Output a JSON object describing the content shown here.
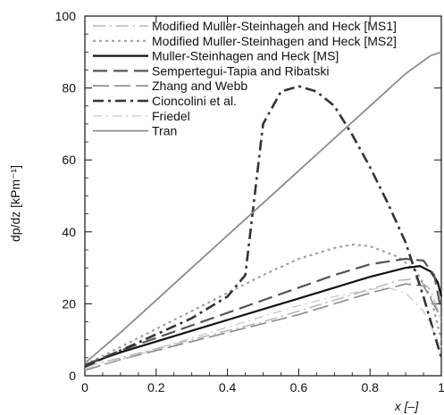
{
  "chart_data": {
    "type": "line",
    "title": "",
    "xlabel": "x [–]",
    "ylabel": "dp/dz [kPm⁻¹]",
    "xlim": [
      0,
      1
    ],
    "ylim": [
      0,
      100
    ],
    "x_ticks": [
      "0",
      "0.2",
      "0.4",
      "0.6",
      "0.8",
      "1"
    ],
    "y_ticks": [
      "0",
      "20",
      "40",
      "60",
      "80",
      "100"
    ],
    "grid": false,
    "legend_position": "top-left",
    "series": [
      {
        "name": "Modified Muller-Steinhagen and Heck [MS1]",
        "style": "dash-dot-light",
        "color": "#b8b8b8",
        "x": [
          0,
          0.1,
          0.2,
          0.3,
          0.4,
          0.5,
          0.6,
          0.7,
          0.8,
          0.88,
          0.93,
          0.97,
          1.0
        ],
        "y": [
          2.5,
          5,
          7.5,
          10,
          12.5,
          15,
          18,
          21,
          24,
          26.5,
          27,
          24,
          15
        ]
      },
      {
        "name": "Modified Muller-Steinhagen and Heck [MS2]",
        "style": "dotted",
        "color": "#a0a0a0",
        "x": [
          0,
          0.1,
          0.2,
          0.3,
          0.4,
          0.5,
          0.6,
          0.7,
          0.75,
          0.8,
          0.88,
          0.93,
          0.97,
          1.0
        ],
        "y": [
          3,
          8,
          13,
          18,
          23,
          28,
          32.5,
          35.5,
          36.5,
          36,
          33,
          29,
          22,
          10
        ]
      },
      {
        "name": "Muller-Steinhagen and Heck [MS]",
        "style": "solid-bold",
        "color": "#111111",
        "x": [
          0,
          0.1,
          0.2,
          0.3,
          0.4,
          0.5,
          0.6,
          0.7,
          0.8,
          0.9,
          0.94,
          0.97,
          0.99,
          1.0
        ],
        "y": [
          3,
          6.5,
          9.5,
          12.5,
          15.5,
          18.5,
          21.5,
          24.5,
          27.5,
          30,
          30.5,
          29,
          26,
          22
        ]
      },
      {
        "name": "Sempertegui-Tapia and Ribatski",
        "style": "long-dash",
        "color": "#555555",
        "x": [
          0,
          0.1,
          0.2,
          0.3,
          0.4,
          0.5,
          0.6,
          0.7,
          0.8,
          0.9,
          0.95,
          0.98,
          1.0
        ],
        "y": [
          3,
          7,
          10.5,
          14,
          17.5,
          21,
          24.5,
          28,
          31,
          32.5,
          32,
          28,
          18
        ]
      },
      {
        "name": "Zhang and Webb",
        "style": "long-dash-light",
        "color": "#8a8a8a",
        "x": [
          0,
          0.1,
          0.2,
          0.3,
          0.4,
          0.5,
          0.6,
          0.7,
          0.8,
          0.9,
          0.95,
          1.0
        ],
        "y": [
          1.5,
          4.5,
          7,
          9.5,
          12,
          14.5,
          17,
          20,
          23,
          25.5,
          25,
          16
        ]
      },
      {
        "name": "Cioncolini et al.",
        "style": "dash-dot-bold",
        "color": "#333333",
        "x": [
          0,
          0.1,
          0.2,
          0.3,
          0.4,
          0.45,
          0.5,
          0.55,
          0.6,
          0.65,
          0.7,
          0.75,
          0.8,
          0.85,
          0.9,
          0.95,
          1.0
        ],
        "y": [
          2.5,
          7,
          11.5,
          16,
          22,
          28,
          70,
          79,
          80.5,
          79,
          75,
          67,
          58,
          48,
          37,
          22,
          5
        ]
      },
      {
        "name": "Friedel",
        "style": "dash-dot-faint",
        "color": "#c4c4c4",
        "x": [
          0,
          0.1,
          0.2,
          0.3,
          0.4,
          0.5,
          0.6,
          0.7,
          0.8,
          0.85,
          0.9,
          0.95,
          1.0
        ],
        "y": [
          2,
          4.5,
          7.5,
          10.5,
          13.5,
          16.5,
          19.5,
          22,
          24,
          24.5,
          23,
          18,
          8
        ]
      },
      {
        "name": "Tran",
        "style": "solid-gray",
        "color": "#8c8c8c",
        "x": [
          0,
          0.1,
          0.2,
          0.3,
          0.4,
          0.5,
          0.6,
          0.7,
          0.8,
          0.9,
          0.97,
          1.0
        ],
        "y": [
          3.5,
          12,
          21,
          30,
          39,
          48,
          57,
          66,
          75,
          84,
          89,
          90
        ]
      }
    ]
  }
}
